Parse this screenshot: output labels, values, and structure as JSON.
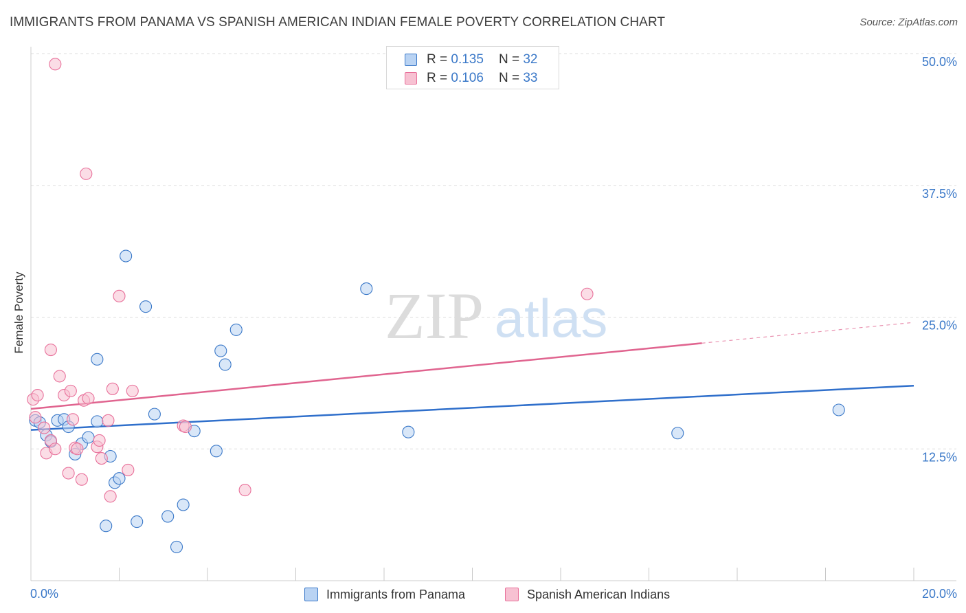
{
  "title": "IMMIGRANTS FROM PANAMA VS SPANISH AMERICAN INDIAN FEMALE POVERTY CORRELATION CHART",
  "source": "Source: ZipAtlas.com",
  "watermark": {
    "zip": "ZIP",
    "atlas": "atlas"
  },
  "colors": {
    "blue": "#3a78c8",
    "blue_fill": "#b9d3f3",
    "blue_line": "#2f6fcb",
    "pink": "#e8709a",
    "pink_fill": "#f7c1d2",
    "pink_line": "#e0648f",
    "grid": "#dddddd",
    "tick_label": "#3a78c8"
  },
  "legend_top": [
    {
      "r_label": "R =",
      "r_value": "0.135",
      "n_label": "N =",
      "n_value": "32"
    },
    {
      "r_label": "R =",
      "r_value": "0.106",
      "n_label": "N =",
      "n_value": "33"
    }
  ],
  "chart_data": {
    "type": "scatter",
    "title": "IMMIGRANTS FROM PANAMA VS SPANISH AMERICAN INDIAN FEMALE POVERTY CORRELATION CHART",
    "xlabel": "",
    "ylabel": "Female Poverty",
    "xlim": [
      0,
      20
    ],
    "ylim": [
      0,
      50
    ],
    "x_tick_labels": [
      "0.0%",
      "20.0%"
    ],
    "y_ticks": [
      12.5,
      25.0,
      37.5,
      50.0
    ],
    "y_tick_labels": [
      "12.5%",
      "25.0%",
      "37.5%",
      "50.0%"
    ],
    "grid": true,
    "legend": "bottom-center",
    "series": [
      {
        "name": "Immigrants from Panama",
        "color": "blue",
        "r": "0.135",
        "n": "32",
        "trend": {
          "x0": 0,
          "y0": 14.3,
          "x1": 20,
          "y1": 18.5,
          "dashed_from": null
        },
        "points": [
          [
            0.1,
            15.2
          ],
          [
            0.2,
            15.0
          ],
          [
            0.35,
            13.8
          ],
          [
            0.45,
            13.2
          ],
          [
            0.6,
            15.2
          ],
          [
            0.75,
            15.3
          ],
          [
            0.85,
            14.6
          ],
          [
            1.0,
            12.0
          ],
          [
            1.15,
            13.0
          ],
          [
            1.3,
            13.6
          ],
          [
            1.5,
            21.0
          ],
          [
            1.5,
            15.1
          ],
          [
            1.7,
            5.2
          ],
          [
            1.8,
            11.8
          ],
          [
            1.9,
            9.3
          ],
          [
            2.0,
            9.7
          ],
          [
            2.15,
            30.8
          ],
          [
            2.4,
            5.6
          ],
          [
            2.6,
            26.0
          ],
          [
            2.8,
            15.8
          ],
          [
            3.1,
            6.1
          ],
          [
            3.3,
            3.2
          ],
          [
            3.45,
            7.2
          ],
          [
            3.7,
            14.2
          ],
          [
            4.2,
            12.3
          ],
          [
            4.3,
            21.8
          ],
          [
            4.4,
            20.5
          ],
          [
            4.65,
            23.8
          ],
          [
            7.6,
            27.7
          ],
          [
            8.55,
            14.1
          ],
          [
            14.65,
            14.0
          ],
          [
            18.3,
            16.2
          ]
        ]
      },
      {
        "name": "Spanish American Indians",
        "color": "pink",
        "r": "0.106",
        "n": "33",
        "trend": {
          "x0": 0,
          "y0": 16.3,
          "x1": 20,
          "y1": 24.5,
          "dashed_from": 15.2
        },
        "points": [
          [
            0.05,
            17.2
          ],
          [
            0.1,
            15.5
          ],
          [
            0.15,
            17.6
          ],
          [
            0.3,
            14.5
          ],
          [
            0.35,
            12.1
          ],
          [
            0.45,
            13.3
          ],
          [
            0.45,
            21.9
          ],
          [
            0.55,
            12.5
          ],
          [
            0.55,
            49.0
          ],
          [
            0.65,
            19.4
          ],
          [
            0.75,
            17.6
          ],
          [
            0.85,
            10.2
          ],
          [
            0.9,
            18.0
          ],
          [
            0.95,
            15.3
          ],
          [
            1.0,
            12.6
          ],
          [
            1.05,
            12.5
          ],
          [
            1.15,
            9.6
          ],
          [
            1.2,
            17.1
          ],
          [
            1.3,
            17.3
          ],
          [
            1.25,
            38.6
          ],
          [
            1.5,
            12.7
          ],
          [
            1.55,
            13.3
          ],
          [
            1.6,
            11.6
          ],
          [
            1.75,
            15.2
          ],
          [
            1.8,
            8.0
          ],
          [
            1.85,
            18.2
          ],
          [
            2.0,
            27.0
          ],
          [
            2.2,
            10.5
          ],
          [
            2.3,
            18.0
          ],
          [
            3.45,
            14.7
          ],
          [
            3.5,
            14.6
          ],
          [
            4.85,
            8.6
          ],
          [
            12.6,
            27.2
          ]
        ]
      }
    ]
  }
}
